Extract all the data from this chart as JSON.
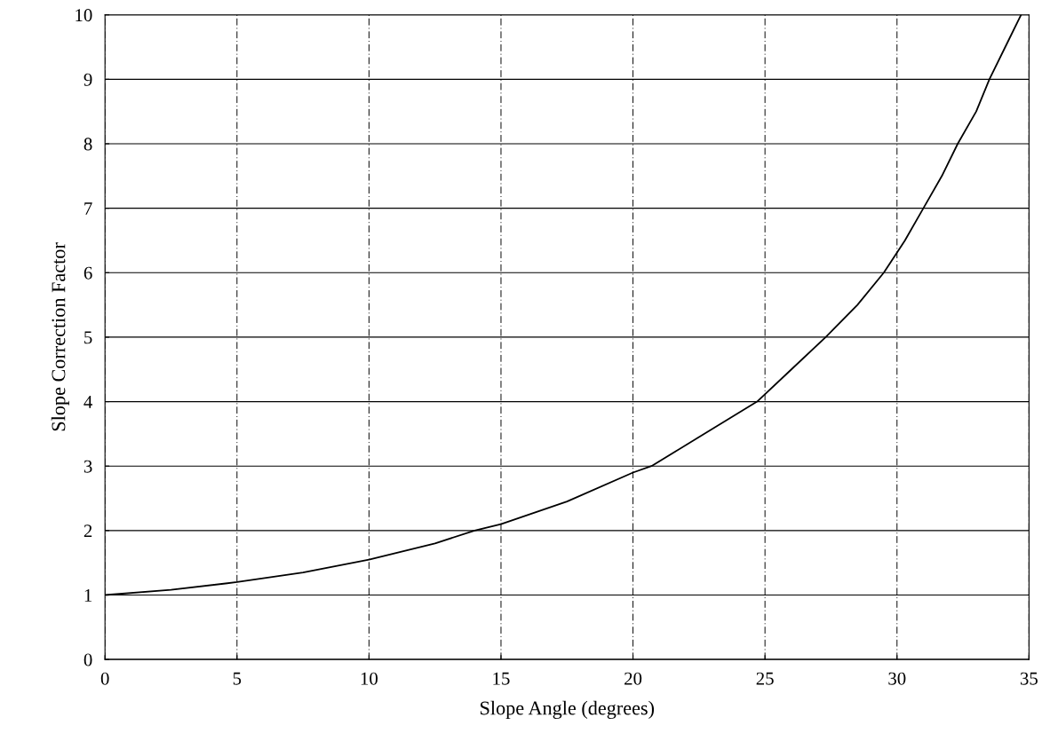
{
  "chart_data": {
    "type": "line",
    "xlabel": "Slope Angle (degrees)",
    "ylabel": "Slope Correction Factor",
    "x": [
      0,
      2.5,
      5,
      7.5,
      10,
      12.5,
      14,
      15,
      17.5,
      20,
      20.7,
      22.5,
      24.7,
      26,
      27.3,
      28.5,
      29.5,
      30.3,
      31,
      31.7,
      32.3,
      33,
      33.5,
      34.1,
      34.7
    ],
    "series": [
      {
        "color": "#000000",
        "values": [
          1.0,
          1.08,
          1.2,
          1.35,
          1.55,
          1.8,
          2.0,
          2.1,
          2.45,
          2.9,
          3.0,
          3.45,
          4.0,
          4.5,
          5.0,
          5.5,
          6.0,
          6.5,
          7.0,
          7.5,
          8.0,
          8.5,
          9.0,
          9.5,
          10.0
        ]
      }
    ],
    "xlim": [
      0,
      35
    ],
    "xticks": [
      0,
      5,
      10,
      15,
      20,
      25,
      30,
      35
    ],
    "ylim": [
      0,
      10
    ],
    "yticks": [
      0,
      1,
      2,
      3,
      4,
      5,
      6,
      7,
      8,
      9,
      10
    ],
    "grid": true,
    "marker": "none",
    "line_style": "solid"
  }
}
